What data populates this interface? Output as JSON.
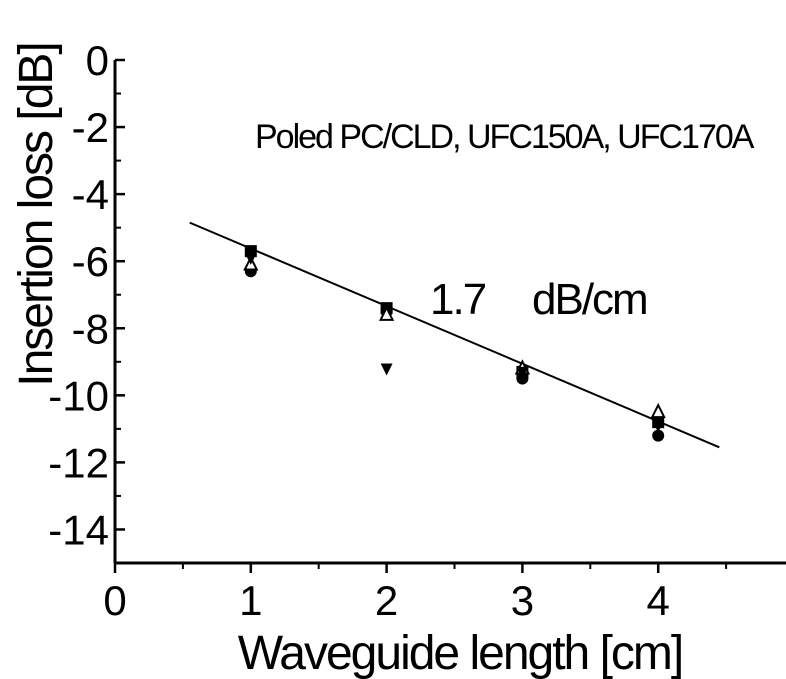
{
  "chart_data": {
    "type": "scatter",
    "title": "",
    "xlabel": "Waveguide length [cm]",
    "ylabel": "Insertion loss [dB]",
    "xlim": [
      0,
      5
    ],
    "ylim": [
      -15,
      0
    ],
    "x_ticks": [
      0,
      1,
      2,
      3,
      4
    ],
    "x_tick_labels": [
      "0",
      "1",
      "2",
      "3",
      "4"
    ],
    "y_ticks": [
      0,
      -2,
      -4,
      -6,
      -8,
      -10,
      -12,
      -14
    ],
    "y_tick_labels": [
      "0",
      "-2",
      "-4",
      "-6",
      "-8",
      "-10",
      "-12",
      "-14"
    ],
    "grid": false,
    "annotations": {
      "sample": "Poled PC/CLD, UFC150A, UFC170A",
      "slope_value": "1.7",
      "slope_unit": "dB/cm"
    },
    "series": [
      {
        "marker": "square",
        "x": [
          1,
          2,
          3,
          4
        ],
        "y": [
          -5.7,
          -7.4,
          -9.3,
          -10.8
        ]
      },
      {
        "marker": "circle",
        "x": [
          1,
          2,
          3,
          4
        ],
        "y": [
          -6.3,
          -7.5,
          -9.5,
          -11.2
        ]
      },
      {
        "marker": "triangle-up",
        "x": [
          1,
          2,
          3,
          4
        ],
        "y": [
          -6.1,
          -7.6,
          -9.2,
          -10.5
        ]
      },
      {
        "marker": "triangle-down",
        "x": [
          1,
          2,
          3,
          4
        ],
        "y": [
          -5.9,
          -9.2,
          -9.3,
          -10.9
        ]
      }
    ],
    "fit_line": {
      "x": [
        0.55,
        4.45
      ],
      "y": [
        -4.85,
        -11.55
      ]
    }
  }
}
